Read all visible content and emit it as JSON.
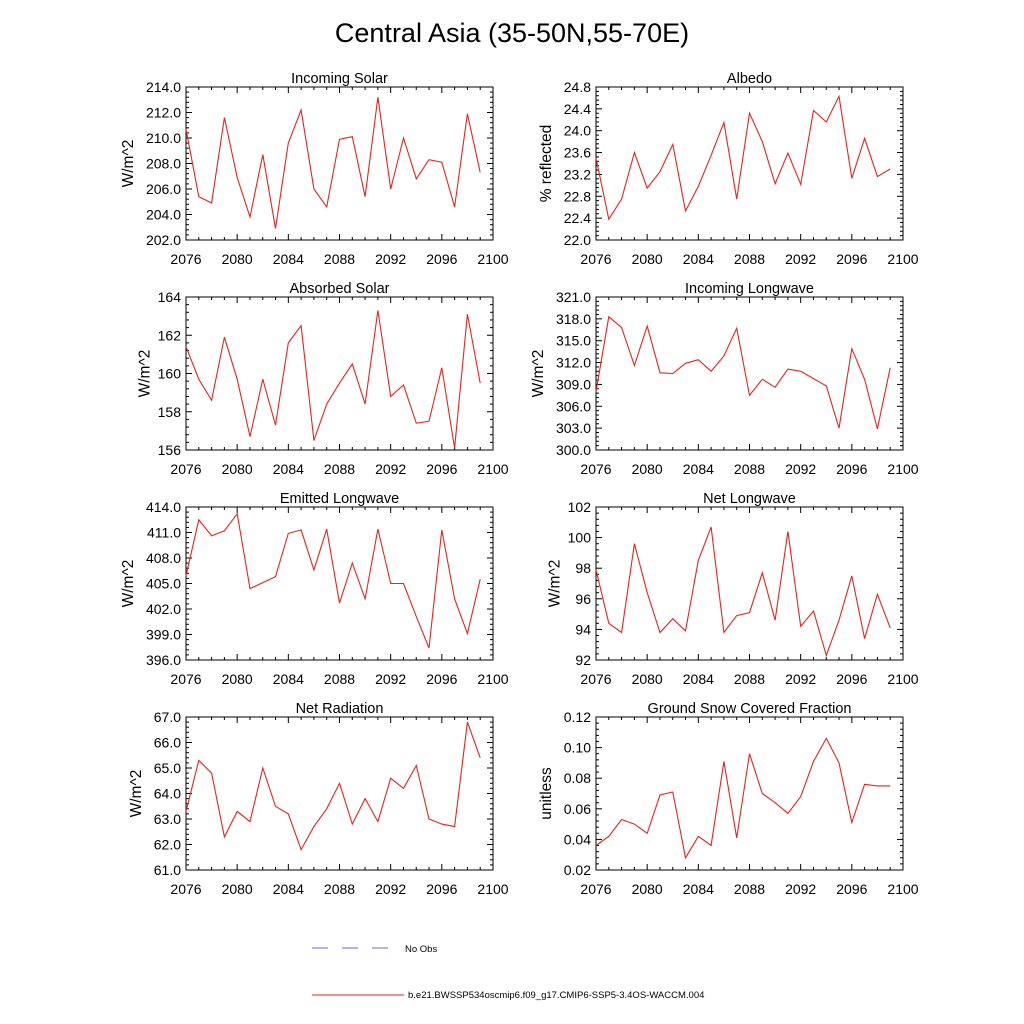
{
  "figure": {
    "title": "Central Asia (35-50N,55-70E)",
    "legend": {
      "entries": [
        {
          "label": "No Obs",
          "color": "#5b6ee1",
          "style": "dashed"
        },
        {
          "label": "b.e21.BWSSP534oscmip6.f09_g17.CMIP6-SSP5-3.4OS-WACCM.004",
          "color": "#e8221c",
          "style": "solid"
        }
      ]
    },
    "series_color": "#e8221c"
  },
  "chart_data": [
    {
      "type": "line",
      "title": "Incoming Solar",
      "ylabel": "W/m^2",
      "xlabel": "",
      "xlim": [
        2076,
        2100
      ],
      "xticks": [
        "2076",
        "2080",
        "2084",
        "2088",
        "2092",
        "2096",
        "2100"
      ],
      "ylim": [
        202,
        214
      ],
      "yticks": [
        "202.0",
        "204.0",
        "206.0",
        "208.0",
        "210.0",
        "212.0",
        "214.0"
      ],
      "x": [
        2076,
        2077,
        2078,
        2079,
        2080,
        2081,
        2082,
        2083,
        2084,
        2085,
        2086,
        2087,
        2088,
        2089,
        2090,
        2091,
        2092,
        2093,
        2094,
        2095,
        2096,
        2097,
        2098,
        2099
      ],
      "values": [
        210.7,
        205.4,
        204.9,
        211.6,
        206.9,
        203.8,
        208.7,
        202.9,
        209.6,
        212.2,
        206.0,
        204.6,
        209.9,
        210.1,
        205.4,
        213.2,
        206.0,
        210.0,
        206.8,
        208.3,
        208.1,
        204.6,
        211.9,
        207.3
      ]
    },
    {
      "type": "line",
      "title": "Albedo",
      "ylabel": "% reflected",
      "xlabel": "",
      "xlim": [
        2076,
        2100
      ],
      "xticks": [
        "2076",
        "2080",
        "2084",
        "2088",
        "2092",
        "2096",
        "2100"
      ],
      "ylim": [
        22.0,
        24.8
      ],
      "yticks": [
        "22.0",
        "22.4",
        "22.8",
        "23.2",
        "23.6",
        "24.0",
        "24.4",
        "24.8"
      ],
      "x": [
        2076,
        2077,
        2078,
        2079,
        2080,
        2081,
        2082,
        2083,
        2084,
        2085,
        2086,
        2087,
        2088,
        2089,
        2090,
        2091,
        2092,
        2093,
        2094,
        2095,
        2096,
        2097,
        2098,
        2099
      ],
      "values": [
        23.5,
        22.38,
        22.75,
        23.6,
        22.95,
        23.25,
        23.75,
        22.53,
        22.98,
        23.55,
        24.15,
        22.75,
        24.32,
        23.8,
        23.03,
        23.59,
        23.02,
        24.37,
        24.16,
        24.63,
        23.13,
        23.86,
        23.16,
        23.3
      ]
    },
    {
      "type": "line",
      "title": "Absorbed Solar",
      "ylabel": "W/m^2",
      "xlabel": "",
      "xlim": [
        2076,
        2100
      ],
      "xticks": [
        "2076",
        "2080",
        "2084",
        "2088",
        "2092",
        "2096",
        "2100"
      ],
      "ylim": [
        156,
        164
      ],
      "yticks": [
        "156",
        "158",
        "160",
        "162",
        "164"
      ],
      "x": [
        2076,
        2077,
        2078,
        2079,
        2080,
        2081,
        2082,
        2083,
        2084,
        2085,
        2086,
        2087,
        2088,
        2089,
        2090,
        2091,
        2092,
        2093,
        2094,
        2095,
        2096,
        2097,
        2098,
        2099
      ],
      "values": [
        161.4,
        159.7,
        158.6,
        161.9,
        159.7,
        156.7,
        159.7,
        157.3,
        161.6,
        162.5,
        156.5,
        158.4,
        159.5,
        160.5,
        158.4,
        163.3,
        158.8,
        159.4,
        157.4,
        157.5,
        160.3,
        156.1,
        163.1,
        159.5
      ]
    },
    {
      "type": "line",
      "title": "Incoming Longwave",
      "ylabel": "W/m^2",
      "xlabel": "",
      "xlim": [
        2076,
        2100
      ],
      "xticks": [
        "2076",
        "2080",
        "2084",
        "2088",
        "2092",
        "2096",
        "2100"
      ],
      "ylim": [
        300,
        321
      ],
      "yticks": [
        "300.0",
        "303.0",
        "306.0",
        "309.0",
        "312.0",
        "315.0",
        "318.0",
        "321.0"
      ],
      "x": [
        2076,
        2077,
        2078,
        2079,
        2080,
        2081,
        2082,
        2083,
        2084,
        2085,
        2086,
        2087,
        2088,
        2089,
        2090,
        2091,
        2092,
        2093,
        2094,
        2095,
        2096,
        2097,
        2098,
        2099
      ],
      "values": [
        308.0,
        318.3,
        316.8,
        311.6,
        317.0,
        310.6,
        310.5,
        311.9,
        312.4,
        310.8,
        312.9,
        316.7,
        307.5,
        309.7,
        308.6,
        311.1,
        310.8,
        309.8,
        308.8,
        303.0,
        313.9,
        309.7,
        302.9,
        311.3
      ]
    },
    {
      "type": "line",
      "title": "Emitted Longwave",
      "ylabel": "W/m^2",
      "xlabel": "",
      "xlim": [
        2076,
        2100
      ],
      "xticks": [
        "2076",
        "2080",
        "2084",
        "2088",
        "2092",
        "2096",
        "2100"
      ],
      "ylim": [
        396,
        414
      ],
      "yticks": [
        "396.0",
        "399.0",
        "402.0",
        "405.0",
        "408.0",
        "411.0",
        "414.0"
      ],
      "x": [
        2076,
        2077,
        2078,
        2079,
        2080,
        2081,
        2082,
        2083,
        2084,
        2085,
        2086,
        2087,
        2088,
        2089,
        2090,
        2091,
        2092,
        2093,
        2094,
        2095,
        2096,
        2097,
        2098,
        2099
      ],
      "values": [
        405.9,
        412.5,
        410.6,
        411.2,
        413.2,
        404.4,
        405.1,
        405.8,
        410.9,
        411.3,
        406.6,
        411.4,
        402.7,
        407.4,
        403.2,
        411.4,
        405.0,
        405.0,
        401.1,
        397.4,
        411.3,
        403.2,
        399.1,
        405.5
      ]
    },
    {
      "type": "line",
      "title": "Net Longwave",
      "ylabel": "W/m^2",
      "xlabel": "",
      "xlim": [
        2076,
        2100
      ],
      "xticks": [
        "2076",
        "2080",
        "2084",
        "2088",
        "2092",
        "2096",
        "2100"
      ],
      "ylim": [
        92,
        102
      ],
      "yticks": [
        "92",
        "94",
        "96",
        "98",
        "100",
        "102"
      ],
      "x": [
        2076,
        2077,
        2078,
        2079,
        2080,
        2081,
        2082,
        2083,
        2084,
        2085,
        2086,
        2087,
        2088,
        2089,
        2090,
        2091,
        2092,
        2093,
        2094,
        2095,
        2096,
        2097,
        2098,
        2099
      ],
      "values": [
        97.9,
        94.4,
        93.8,
        99.6,
        96.4,
        93.8,
        94.7,
        93.9,
        98.5,
        100.7,
        93.8,
        94.9,
        95.1,
        97.7,
        94.6,
        100.4,
        94.2,
        95.2,
        92.3,
        94.6,
        97.5,
        93.4,
        96.3,
        94.1
      ]
    },
    {
      "type": "line",
      "title": "Net Radiation",
      "ylabel": "W/m^2",
      "xlabel": "",
      "xlim": [
        2076,
        2100
      ],
      "xticks": [
        "2076",
        "2080",
        "2084",
        "2088",
        "2092",
        "2096",
        "2100"
      ],
      "ylim": [
        61,
        67
      ],
      "yticks": [
        "61.0",
        "62.0",
        "63.0",
        "64.0",
        "65.0",
        "66.0",
        "67.0"
      ],
      "x": [
        2076,
        2077,
        2078,
        2079,
        2080,
        2081,
        2082,
        2083,
        2084,
        2085,
        2086,
        2087,
        2088,
        2089,
        2090,
        2091,
        2092,
        2093,
        2094,
        2095,
        2096,
        2097,
        2098,
        2099
      ],
      "values": [
        63.3,
        65.3,
        64.8,
        62.3,
        63.3,
        62.9,
        65.0,
        63.5,
        63.2,
        61.8,
        62.7,
        63.4,
        64.4,
        62.8,
        63.8,
        62.9,
        64.6,
        64.2,
        65.1,
        63.0,
        62.8,
        62.7,
        66.8,
        65.4
      ]
    },
    {
      "type": "line",
      "title": "Ground Snow Covered Fraction",
      "ylabel": "unitless",
      "xlabel": "",
      "xlim": [
        2076,
        2100
      ],
      "xticks": [
        "2076",
        "2080",
        "2084",
        "2088",
        "2092",
        "2096",
        "2100"
      ],
      "ylim": [
        0.02,
        0.12
      ],
      "yticks": [
        "0.02",
        "0.04",
        "0.06",
        "0.08",
        "0.10",
        "0.12"
      ],
      "x": [
        2076,
        2077,
        2078,
        2079,
        2080,
        2081,
        2082,
        2083,
        2084,
        2085,
        2086,
        2087,
        2088,
        2089,
        2090,
        2091,
        2092,
        2093,
        2094,
        2095,
        2096,
        2097,
        2098,
        2099
      ],
      "values": [
        0.036,
        0.042,
        0.053,
        0.05,
        0.044,
        0.069,
        0.071,
        0.028,
        0.042,
        0.036,
        0.091,
        0.041,
        0.096,
        0.07,
        0.064,
        0.057,
        0.068,
        0.091,
        0.106,
        0.09,
        0.051,
        0.076,
        0.075,
        0.075
      ]
    }
  ]
}
